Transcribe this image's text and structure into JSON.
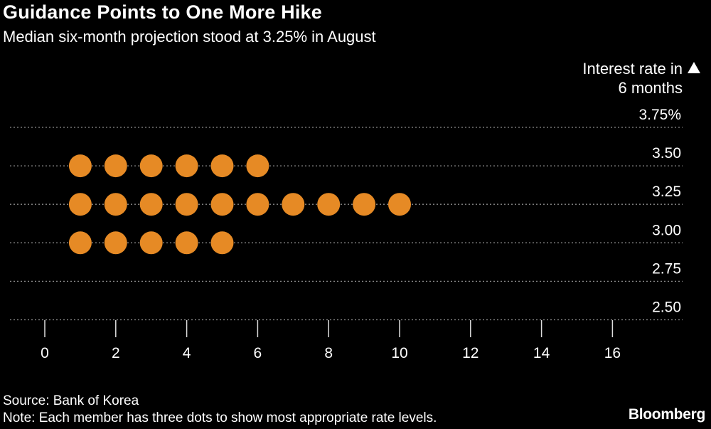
{
  "title": "Guidance Points to One More Hike",
  "subtitle": "Median six-month projection stood at 3.25% in August",
  "source": "Source: Bank of Korea",
  "note": "Note: Each member has three dots to show most appropriate rate levels.",
  "brand": "Bloomberg",
  "colors": {
    "background": "#000000",
    "dot": "#E68A25",
    "grid": "#8c8c8c",
    "text": "#ffffff"
  },
  "chart_data": {
    "type": "scatter",
    "title": "Guidance Points to One More Hike",
    "subtitle": "Median six-month projection stood at 3.25% in August",
    "ylabel_lines": [
      "Interest rate in",
      "6 months"
    ],
    "y_axis_side": "right",
    "y_ticks": [
      "3.75%",
      "3.50",
      "3.25",
      "3.00",
      "2.75",
      "2.50"
    ],
    "y_tick_values": [
      3.75,
      3.5,
      3.25,
      3.0,
      2.75,
      2.5
    ],
    "x_ticks": [
      "0",
      "2",
      "4",
      "6",
      "8",
      "10",
      "12",
      "14",
      "16"
    ],
    "x_tick_values": [
      0,
      2,
      4,
      6,
      8,
      10,
      12,
      14,
      16
    ],
    "xlim": [
      0,
      16
    ],
    "ylim": [
      2.5,
      3.75
    ],
    "grid": "horizontal dotted",
    "series": [
      {
        "rate": 3.5,
        "count": 6
      },
      {
        "rate": 3.25,
        "count": 10
      },
      {
        "rate": 3.0,
        "count": 5
      }
    ]
  }
}
